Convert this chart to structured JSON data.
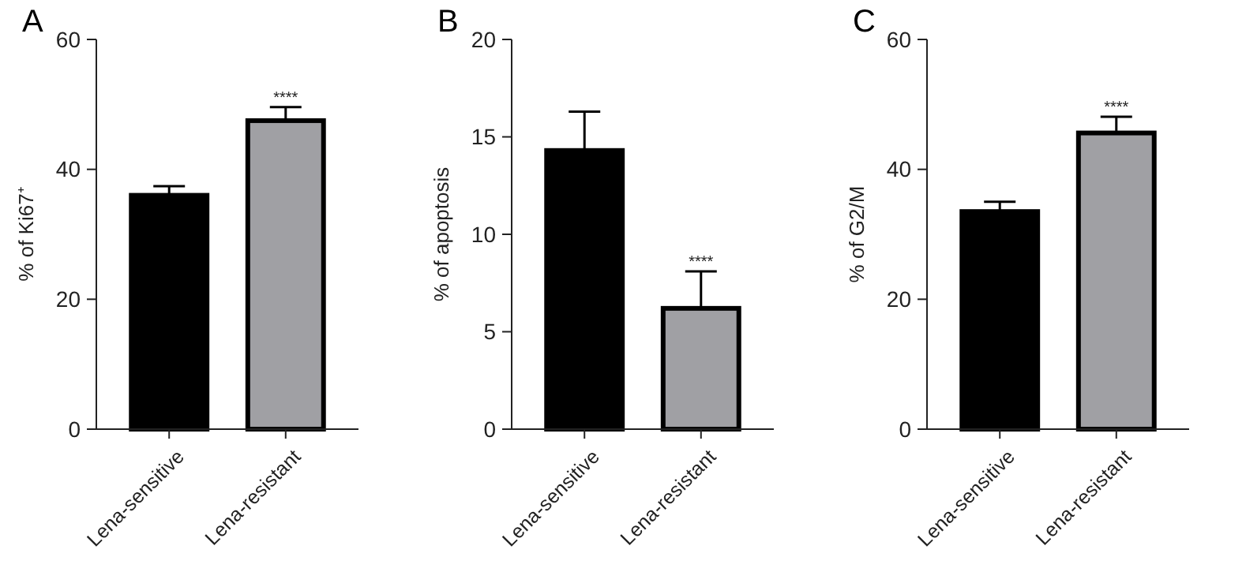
{
  "chart_data": [
    {
      "type": "bar",
      "title": "A",
      "ylabel": "% of Ki67⁺",
      "categories": [
        "Lena-sensitive",
        "Lena-resistant"
      ],
      "values": [
        36.0,
        47.5
      ],
      "errors": [
        1.4,
        2.1
      ],
      "colors": [
        "#000000",
        "#a0a0a4"
      ],
      "ylim": [
        0,
        60
      ],
      "yticks": [
        0,
        20,
        40,
        60
      ],
      "annotations": [
        {
          "text": "****",
          "x": "Lena-resistant",
          "y": 49.6
        }
      ]
    },
    {
      "type": "bar",
      "title": "B",
      "ylabel": "% of apoptosis",
      "categories": [
        "Lena-sensitive",
        "Lena-resistant"
      ],
      "values": [
        14.3,
        6.2
      ],
      "errors": [
        2.0,
        1.9
      ],
      "colors": [
        "#000000",
        "#a0a0a4"
      ],
      "ylim": [
        0,
        20
      ],
      "yticks": [
        0,
        5,
        10,
        15,
        20
      ],
      "annotations": [
        {
          "text": "****",
          "x": "Lena-resistant",
          "y": 8.1
        }
      ]
    },
    {
      "type": "bar",
      "title": "C",
      "ylabel": "% of G2/M",
      "categories": [
        "Lena-sensitive",
        "Lena-resistant"
      ],
      "values": [
        33.5,
        45.6
      ],
      "errors": [
        1.5,
        2.5
      ],
      "colors": [
        "#000000",
        "#a0a0a4"
      ],
      "ylim": [
        0,
        60
      ],
      "yticks": [
        0,
        20,
        40,
        60
      ],
      "annotations": [
        {
          "text": "****",
          "x": "Lena-resistant",
          "y": 48.1
        }
      ]
    }
  ]
}
